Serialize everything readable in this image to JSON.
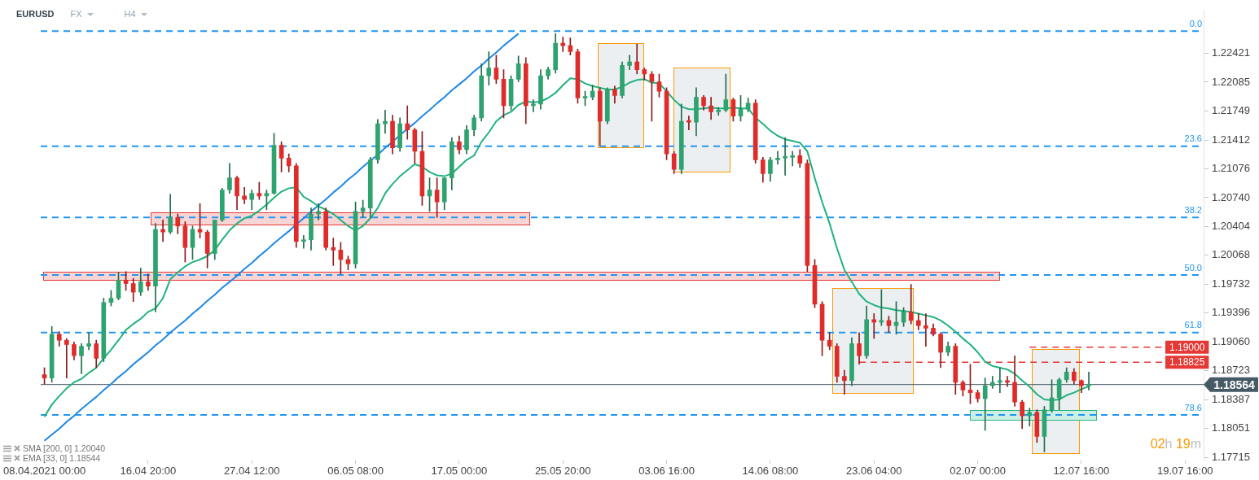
{
  "chart_data": {
    "type": "candlestick",
    "title": "EURUSD",
    "subtitle": "FX",
    "annotations": [
      "H4",
      "SMA [200, 0] 1.20040",
      "EMA [33, 0] 1.18544",
      "02h 19m",
      {
        "text": "0.0",
        "y": 1.2268
      },
      {
        "text": "23.6",
        "y": 1.2134
      },
      {
        "text": "38.2",
        "y": 1.2051
      },
      {
        "text": "50.0",
        "y": 1.1984
      },
      {
        "text": "61.8",
        "y": 1.1917
      },
      {
        "text": "78.6",
        "y": 1.1821
      }
    ],
    "categories": [
      "08.04.2021 00:00",
      null,
      null,
      null,
      null,
      null,
      null,
      null,
      null,
      null,
      null,
      null,
      null,
      null,
      "16.04 20:00",
      null,
      null,
      null,
      null,
      null,
      null,
      null,
      null,
      null,
      null,
      null,
      null,
      null,
      "27.04 12:00",
      null,
      null,
      null,
      null,
      null,
      null,
      null,
      null,
      null,
      null,
      null,
      null,
      null,
      "06.05 08:00",
      null,
      null,
      null,
      null,
      null,
      null,
      null,
      null,
      null,
      null,
      null,
      null,
      null,
      "17.05 00:00",
      null,
      null,
      null,
      null,
      null,
      null,
      null,
      null,
      null,
      null,
      null,
      null,
      null,
      "25.05 20:00",
      null,
      null,
      null,
      null,
      null,
      null,
      null,
      null,
      null,
      null,
      null,
      null,
      null,
      "03.06 16:00",
      null,
      null,
      null,
      null,
      null,
      null,
      null,
      null,
      null,
      null,
      null,
      null,
      null,
      "14.06 08:00",
      null,
      null,
      null,
      null,
      null,
      null,
      null,
      null,
      null,
      null,
      null,
      null,
      null,
      "23.06 04:00",
      null,
      null,
      null,
      null,
      null,
      null,
      null,
      null,
      null,
      null,
      null,
      null,
      null,
      "02.07 00:00",
      null,
      null,
      null,
      null,
      null,
      null,
      null,
      null,
      null,
      null,
      null,
      null,
      null,
      "12.07 16:00",
      null,
      null,
      null,
      null,
      null,
      null,
      null,
      null,
      null,
      null,
      null,
      null,
      null,
      "19.07 16:00",
      null,
      null
    ],
    "ohlc": [
      [
        1.1868,
        1.1876,
        1.1857,
        1.1864
      ],
      [
        1.1864,
        1.1924,
        1.1859,
        1.1915
      ],
      [
        1.1915,
        1.1918,
        1.1901,
        1.1908
      ],
      [
        1.1908,
        1.191,
        1.1864,
        1.1903
      ],
      [
        1.1903,
        1.1906,
        1.1885,
        1.189
      ],
      [
        1.189,
        1.1904,
        1.1869,
        1.1901
      ],
      [
        1.1901,
        1.1917,
        1.1897,
        1.1904
      ],
      [
        1.1904,
        1.1908,
        1.1876,
        1.1887
      ],
      [
        1.1887,
        1.1957,
        1.1883,
        1.1952
      ],
      [
        1.1952,
        1.1966,
        1.1948,
        1.1957
      ],
      [
        1.1957,
        1.1987,
        1.1955,
        1.1978
      ],
      [
        1.1978,
        1.1988,
        1.1966,
        1.1974
      ],
      [
        1.1974,
        1.198,
        1.1953,
        1.1964
      ],
      [
        1.1964,
        1.1992,
        1.196,
        1.1976
      ],
      [
        1.1976,
        1.1985,
        1.1966,
        1.1971
      ],
      [
        1.1971,
        1.2044,
        1.1941,
        1.2037
      ],
      [
        1.2037,
        1.2048,
        1.2023,
        1.2034
      ],
      [
        1.2034,
        1.2078,
        1.2032,
        1.2051
      ],
      [
        1.2051,
        1.2055,
        1.2032,
        1.2041
      ],
      [
        1.2041,
        1.2046,
        1.1999,
        1.2016
      ],
      [
        1.2016,
        1.2041,
        1.2002,
        1.2037
      ],
      [
        1.2037,
        1.2067,
        1.2027,
        1.2034
      ],
      [
        1.2034,
        1.2036,
        1.1992,
        1.2009
      ],
      [
        1.2009,
        1.2048,
        1.2002,
        1.2048
      ],
      [
        1.2048,
        1.2085,
        1.2046,
        1.2083
      ],
      [
        1.2083,
        1.2114,
        1.2079,
        1.2097
      ],
      [
        1.2097,
        1.2099,
        1.206,
        1.2076
      ],
      [
        1.2076,
        1.2086,
        1.2067,
        1.2072
      ],
      [
        1.2072,
        1.2083,
        1.206,
        1.2079
      ],
      [
        1.2079,
        1.2092,
        1.2072,
        1.2076
      ],
      [
        1.2076,
        1.2083,
        1.206,
        1.2079
      ],
      [
        1.2079,
        1.2149,
        1.2078,
        1.2135
      ],
      [
        1.2135,
        1.2139,
        1.2104,
        1.212
      ],
      [
        1.212,
        1.2125,
        1.2104,
        1.2111
      ],
      [
        1.2111,
        1.2114,
        1.2016,
        1.2023
      ],
      [
        1.2023,
        1.203,
        1.2015,
        1.2025
      ],
      [
        1.2025,
        1.2062,
        1.2013,
        1.2055
      ],
      [
        1.2055,
        1.2067,
        1.2048,
        1.2058
      ],
      [
        1.2058,
        1.2062,
        1.2013,
        1.2016
      ],
      [
        1.2016,
        1.2027,
        1.1995,
        1.2013
      ],
      [
        1.2013,
        1.2022,
        1.1985,
        1.2002
      ],
      [
        1.2002,
        1.2006,
        1.199,
        1.1997
      ],
      [
        1.1997,
        1.2069,
        1.1992,
        1.2058
      ],
      [
        1.2058,
        1.2071,
        1.2051,
        1.2062
      ],
      [
        1.2062,
        1.2121,
        1.2051,
        1.2118
      ],
      [
        1.2118,
        1.2165,
        1.2114,
        1.216
      ],
      [
        1.216,
        1.2176,
        1.2149,
        1.2163
      ],
      [
        1.2163,
        1.217,
        1.2125,
        1.2132
      ],
      [
        1.2132,
        1.2167,
        1.2128,
        1.216
      ],
      [
        1.216,
        1.2181,
        1.2142,
        1.2153
      ],
      [
        1.2153,
        1.2155,
        1.2114,
        1.2128
      ],
      [
        1.2128,
        1.2151,
        1.2065,
        1.2076
      ],
      [
        1.2076,
        1.2097,
        1.2058,
        1.2083
      ],
      [
        1.2083,
        1.2097,
        1.2051,
        1.2069
      ],
      [
        1.2069,
        1.2097,
        1.206,
        1.2097
      ],
      [
        1.2097,
        1.2144,
        1.2083,
        1.2139
      ],
      [
        1.2139,
        1.2146,
        1.2125,
        1.213
      ],
      [
        1.213,
        1.2158,
        1.2125,
        1.2153
      ],
      [
        1.2153,
        1.217,
        1.2146,
        1.2167
      ],
      [
        1.2167,
        1.223,
        1.2163,
        1.2216
      ],
      [
        1.2216,
        1.2244,
        1.2205,
        1.2225
      ],
      [
        1.2225,
        1.224,
        1.2207,
        1.2212
      ],
      [
        1.2212,
        1.2223,
        1.2167,
        1.2181
      ],
      [
        1.2181,
        1.2216,
        1.2176,
        1.2212
      ],
      [
        1.2212,
        1.2239,
        1.2209,
        1.223
      ],
      [
        1.223,
        1.2237,
        1.216,
        1.2181
      ],
      [
        1.2181,
        1.2188,
        1.2174,
        1.2183
      ],
      [
        1.2183,
        1.2223,
        1.2177,
        1.2216
      ],
      [
        1.2216,
        1.2226,
        1.2212,
        1.2223
      ],
      [
        1.2223,
        1.2265,
        1.2219,
        1.2254
      ],
      [
        1.2254,
        1.2261,
        1.2244,
        1.2251
      ],
      [
        1.2251,
        1.226,
        1.224,
        1.2244
      ],
      [
        1.2244,
        1.2247,
        1.2184,
        1.219
      ],
      [
        1.219,
        1.2198,
        1.2181,
        1.2191
      ],
      [
        1.2191,
        1.2205,
        1.2188,
        1.2198
      ],
      [
        1.2198,
        1.2202,
        1.2135,
        1.2163
      ],
      [
        1.2163,
        1.2202,
        1.216,
        1.22
      ],
      [
        1.22,
        1.2204,
        1.2184,
        1.2193
      ],
      [
        1.2193,
        1.2232,
        1.219,
        1.2228
      ],
      [
        1.2228,
        1.224,
        1.2223,
        1.2232
      ],
      [
        1.2232,
        1.2253,
        1.2218,
        1.2223
      ],
      [
        1.2223,
        1.2225,
        1.2211,
        1.2218
      ],
      [
        1.2218,
        1.2221,
        1.2163,
        1.2209
      ],
      [
        1.2209,
        1.2218,
        1.2191,
        1.2198
      ],
      [
        1.2198,
        1.2202,
        1.2118,
        1.2125
      ],
      [
        1.2125,
        1.2128,
        1.2102,
        1.2107
      ],
      [
        1.2107,
        1.2183,
        1.2102,
        1.2163
      ],
      [
        1.2163,
        1.2169,
        1.2153,
        1.2162
      ],
      [
        1.2162,
        1.2202,
        1.2146,
        1.2191
      ],
      [
        1.2191,
        1.2193,
        1.2176,
        1.2181
      ],
      [
        1.2181,
        1.2191,
        1.2165,
        1.2174
      ],
      [
        1.2174,
        1.2179,
        1.217,
        1.2176
      ],
      [
        1.2176,
        1.2218,
        1.2174,
        1.2188
      ],
      [
        1.2188,
        1.219,
        1.2163,
        1.2169
      ],
      [
        1.2169,
        1.2193,
        1.2163,
        1.2177
      ],
      [
        1.2177,
        1.219,
        1.2174,
        1.2184
      ],
      [
        1.2184,
        1.2188,
        1.2114,
        1.2118
      ],
      [
        1.2118,
        1.2121,
        1.2092,
        1.2102
      ],
      [
        1.2102,
        1.2121,
        1.2093,
        1.2118
      ],
      [
        1.2118,
        1.2128,
        1.2113,
        1.212
      ],
      [
        1.212,
        1.2144,
        1.21,
        1.2121
      ],
      [
        1.2121,
        1.2128,
        1.2111,
        1.2123
      ],
      [
        1.2123,
        1.213,
        1.2109,
        1.2114
      ],
      [
        1.2114,
        1.2118,
        1.1988,
        1.1995
      ],
      [
        1.1995,
        1.2002,
        1.1946,
        1.195
      ],
      [
        1.195,
        1.1953,
        1.189,
        1.1908
      ],
      [
        1.1908,
        1.1917,
        1.1897,
        1.1901
      ],
      [
        1.1901,
        1.1904,
        1.1859,
        1.1866
      ],
      [
        1.1866,
        1.1873,
        1.1845,
        1.1861
      ],
      [
        1.1861,
        1.1911,
        1.1855,
        1.1904
      ],
      [
        1.1904,
        1.1917,
        1.188,
        1.189
      ],
      [
        1.189,
        1.1948,
        1.1887,
        1.1932
      ],
      [
        1.1932,
        1.1939,
        1.191,
        1.1929
      ],
      [
        1.1929,
        1.1967,
        1.1925,
        1.1931
      ],
      [
        1.1931,
        1.1936,
        1.1917,
        1.1925
      ],
      [
        1.1925,
        1.1953,
        1.1915,
        1.1929
      ],
      [
        1.1929,
        1.1946,
        1.1924,
        1.1941
      ],
      [
        1.1941,
        1.1973,
        1.1927,
        1.1931
      ],
      [
        1.1931,
        1.1939,
        1.192,
        1.1925
      ],
      [
        1.1925,
        1.1939,
        1.1901,
        1.1922
      ],
      [
        1.1922,
        1.1927,
        1.1913,
        1.1915
      ],
      [
        1.1915,
        1.1917,
        1.1876,
        1.1894
      ],
      [
        1.1894,
        1.1906,
        1.189,
        1.1901
      ],
      [
        1.1901,
        1.1904,
        1.1845,
        1.1859
      ],
      [
        1.1859,
        1.1861,
        1.1843,
        1.185
      ],
      [
        1.185,
        1.188,
        1.1834,
        1.1847
      ],
      [
        1.1847,
        1.185,
        1.1836,
        1.184
      ],
      [
        1.184,
        1.1864,
        1.1803,
        1.1855
      ],
      [
        1.1855,
        1.1866,
        1.1852,
        1.1859
      ],
      [
        1.1859,
        1.1876,
        1.1847,
        1.1861
      ],
      [
        1.1861,
        1.1866,
        1.1854,
        1.1859
      ],
      [
        1.1859,
        1.189,
        1.1831,
        1.1836
      ],
      [
        1.1836,
        1.1838,
        1.1805,
        1.182
      ],
      [
        1.182,
        1.1829,
        1.1808,
        1.1824
      ],
      [
        1.1824,
        1.1827,
        1.1789,
        1.1796
      ],
      [
        1.1796,
        1.1831,
        1.1778,
        1.1827
      ],
      [
        1.1827,
        1.1862,
        1.1824,
        1.1841
      ],
      [
        1.1841,
        1.1864,
        1.1827,
        1.1862
      ],
      [
        1.1862,
        1.1876,
        1.1859,
        1.1871
      ],
      [
        1.1871,
        1.1875,
        1.1857,
        1.1861
      ],
      [
        1.1861,
        1.1862,
        1.1847,
        1.1855
      ],
      [
        1.1855,
        1.1871,
        1.185,
        1.18564
      ],
      null,
      null,
      null,
      null,
      null,
      null,
      null,
      null,
      null,
      null,
      null,
      null,
      null,
      null,
      null
    ],
    "series": [
      {
        "type": "line",
        "color": "#20b27c",
        "values": [
          1.1819,
          1.1833,
          1.1843,
          1.1852,
          1.1859,
          1.1863,
          1.187,
          1.1876,
          1.1887,
          1.1897,
          1.1908,
          1.192,
          1.1927,
          1.1933,
          1.1941,
          1.1945,
          1.1957,
          1.1979,
          1.1987,
          1.1994,
          1.1999,
          1.2002,
          1.2006,
          1.2013,
          1.2025,
          1.2036,
          1.2044,
          1.205,
          1.2053,
          1.2059,
          1.2066,
          1.2074,
          1.2081,
          1.2085,
          1.2086,
          1.2075,
          1.207,
          1.2064,
          1.206,
          1.2055,
          1.2048,
          1.2041,
          1.2036,
          1.2041,
          1.205,
          1.2062,
          1.2079,
          1.209,
          1.2099,
          1.2106,
          1.2113,
          1.211,
          1.2104,
          1.21,
          1.2099,
          1.2102,
          1.211,
          1.2118,
          1.2123,
          1.2139,
          1.215,
          1.2163,
          1.217,
          1.2174,
          1.2182,
          1.2186,
          1.2185,
          1.2186,
          1.219,
          1.2196,
          1.2205,
          1.2213,
          1.2212,
          1.2207,
          1.2204,
          1.2202,
          1.22,
          1.22,
          1.2203,
          1.2208,
          1.2211,
          1.2212,
          1.2208,
          1.2207,
          1.2198,
          1.2188,
          1.218,
          1.2177,
          1.2177,
          1.2178,
          1.2179,
          1.2178,
          1.2178,
          1.2179,
          1.2178,
          1.2178,
          1.2167,
          1.216,
          1.2152,
          1.2146,
          1.2142,
          1.214,
          1.2138,
          1.2128,
          1.2097,
          1.2069,
          1.2044,
          1.2015,
          1.199,
          1.1976,
          1.1962,
          1.1953,
          1.1949,
          1.1946,
          1.1945,
          1.1943,
          1.1942,
          1.1941,
          1.1939,
          1.1937,
          1.1935,
          1.1931,
          1.1925,
          1.1918,
          1.191,
          1.1903,
          1.1894,
          1.1883,
          1.1878,
          1.1876,
          1.1874,
          1.1869,
          1.1861,
          1.1854,
          1.1845,
          1.1839,
          1.1838,
          1.1839,
          1.1844,
          1.1847,
          1.1851,
          1.18544,
          null,
          null,
          null,
          null,
          null,
          null,
          null,
          null,
          null,
          null,
          null,
          null,
          null,
          null,
          null
        ]
      },
      {
        "type": "line",
        "color": "#1e88e5",
        "values": [
          1.1791,
          1.1798,
          1.1805,
          1.1813,
          1.182,
          1.1828,
          1.1835,
          1.1842,
          1.185,
          1.1857,
          1.1865,
          1.1872,
          1.188,
          1.1887,
          1.1894,
          1.1902,
          1.1909,
          1.1917,
          1.1924,
          1.1931,
          1.1939,
          1.1946,
          1.1954,
          1.1961,
          1.1969,
          1.1976,
          1.1983,
          1.1991,
          1.1998,
          1.2006,
          1.2013,
          1.2021,
          1.2028,
          1.2035,
          1.2043,
          1.205,
          1.2058,
          1.2065,
          1.2072,
          1.208,
          1.2087,
          1.2095,
          1.2102,
          1.211,
          1.2117,
          1.2124,
          1.2132,
          1.2139,
          1.2147,
          1.2154,
          1.2161,
          1.2169,
          1.2176,
          1.2184,
          1.2191,
          1.2199,
          1.2206,
          1.2213,
          1.2221,
          1.2228,
          1.2236,
          1.2243,
          1.2251,
          1.2258,
          1.2265,
          null,
          null,
          null,
          null,
          null,
          null,
          null,
          null,
          null,
          null,
          null,
          null,
          null,
          null,
          null,
          null,
          null,
          null,
          null,
          null,
          null,
          null,
          null,
          null,
          null,
          null,
          null,
          null,
          null,
          null,
          null,
          null,
          null,
          null,
          null,
          null,
          null,
          null,
          null,
          null,
          null,
          null,
          null,
          null,
          null,
          null,
          null,
          null,
          null,
          null,
          null,
          null,
          null,
          null,
          null,
          null,
          null,
          null,
          null,
          null,
          null,
          null,
          null,
          null,
          null,
          null,
          null,
          null,
          null,
          null,
          null,
          null,
          null,
          null,
          null,
          null,
          null,
          null,
          null,
          null,
          null,
          null,
          null,
          null,
          null,
          null,
          null,
          null,
          null,
          null,
          null,
          null
        ]
      },
      {
        "type": "line",
        "color": "#e53935",
        "line_style": "dashed",
        "values": [
          null,
          null,
          null,
          null,
          null,
          null,
          null,
          null,
          null,
          null,
          null,
          null,
          null,
          null,
          null,
          null,
          null,
          null,
          null,
          null,
          null,
          null,
          null,
          null,
          null,
          null,
          null,
          null,
          null,
          null,
          null,
          null,
          null,
          null,
          null,
          null,
          null,
          null,
          null,
          null,
          null,
          null,
          null,
          null,
          null,
          null,
          null,
          null,
          null,
          null,
          null,
          null,
          null,
          null,
          null,
          null,
          null,
          null,
          null,
          null,
          null,
          null,
          null,
          null,
          null,
          null,
          null,
          null,
          null,
          null,
          null,
          null,
          null,
          null,
          null,
          null,
          null,
          null,
          null,
          null,
          null,
          null,
          null,
          null,
          null,
          null,
          null,
          null,
          null,
          null,
          null,
          null,
          null,
          null,
          null,
          null,
          null,
          null,
          null,
          null,
          null,
          null,
          null,
          null,
          null,
          null,
          null,
          null,
          null,
          null,
          1.18825,
          1.18825,
          1.18825,
          1.18825,
          1.18825,
          1.18825,
          1.18825,
          1.18825,
          1.18825,
          1.18825,
          1.18825,
          1.18825,
          1.18825,
          1.18825,
          1.18825,
          1.18825,
          1.18825,
          1.18825,
          1.18825,
          1.18825,
          1.18825,
          1.18825,
          1.18825,
          1.18825,
          1.18825,
          1.18825,
          1.18825,
          1.18825,
          1.18825,
          1.18825,
          1.18825,
          1.18825,
          1.18825,
          1.18825,
          1.18825,
          1.18825,
          1.18825,
          1.18825,
          1.18825,
          1.18825,
          1.18825,
          1.18825,
          null,
          null,
          null,
          null,
          null
        ],
        "value_labels": [
          null,
          null,
          null,
          null,
          null,
          null,
          null,
          null,
          null,
          null,
          null,
          null,
          null,
          null,
          null,
          null,
          null,
          null,
          null,
          null,
          null,
          null,
          null,
          null,
          null,
          null,
          null,
          null,
          null,
          null,
          null,
          null,
          null,
          null,
          null,
          null,
          null,
          null,
          null,
          null,
          null,
          null,
          null,
          null,
          null,
          null,
          null,
          null,
          null,
          null,
          null,
          null,
          null,
          null,
          null,
          null,
          null,
          null,
          null,
          null,
          null,
          null,
          null,
          null,
          null,
          null,
          null,
          null,
          null,
          null,
          null,
          null,
          null,
          null,
          null,
          null,
          null,
          null,
          null,
          null,
          null,
          null,
          null,
          null,
          null,
          null,
          null,
          null,
          null,
          null,
          null,
          null,
          null,
          null,
          null,
          null,
          null,
          null,
          null,
          null,
          null,
          null,
          null,
          null,
          null,
          null,
          null,
          null,
          null,
          null,
          null,
          null,
          null,
          null,
          null,
          null,
          null,
          null,
          null,
          null,
          null,
          null,
          null,
          null,
          null,
          null,
          null,
          null,
          null,
          null,
          null,
          null,
          null,
          null,
          null,
          null,
          null,
          null,
          null,
          null,
          null,
          null,
          null,
          null,
          null,
          null,
          null,
          null,
          null,
          null,
          null,
          "1.18825",
          null,
          null,
          null,
          null,
          null
        ]
      },
      {
        "type": "line",
        "color": "#e53935",
        "line_style": "dashed",
        "values": [
          null,
          null,
          null,
          null,
          null,
          null,
          null,
          null,
          null,
          null,
          null,
          null,
          null,
          null,
          null,
          null,
          null,
          null,
          null,
          null,
          null,
          null,
          null,
          null,
          null,
          null,
          null,
          null,
          null,
          null,
          null,
          null,
          null,
          null,
          null,
          null,
          null,
          null,
          null,
          null,
          null,
          null,
          null,
          null,
          null,
          null,
          null,
          null,
          null,
          null,
          null,
          null,
          null,
          null,
          null,
          null,
          null,
          null,
          null,
          null,
          null,
          null,
          null,
          null,
          null,
          null,
          null,
          null,
          null,
          null,
          null,
          null,
          null,
          null,
          null,
          null,
          null,
          null,
          null,
          null,
          null,
          null,
          null,
          null,
          null,
          null,
          null,
          null,
          null,
          null,
          null,
          null,
          null,
          null,
          null,
          null,
          null,
          null,
          null,
          null,
          null,
          null,
          null,
          null,
          null,
          null,
          null,
          null,
          null,
          null,
          null,
          null,
          null,
          null,
          null,
          null,
          null,
          null,
          null,
          null,
          null,
          null,
          null,
          null,
          null,
          null,
          null,
          null,
          null,
          null,
          null,
          null,
          null,
          1.19,
          1.19,
          1.19,
          1.19,
          1.19,
          1.19,
          1.19,
          1.19,
          1.19,
          1.19,
          1.19,
          1.19,
          1.19,
          1.19,
          1.19,
          1.19,
          1.19,
          1.19,
          1.19,
          null,
          null,
          null,
          null,
          null
        ],
        "value_labels": [
          null,
          null,
          null,
          null,
          null,
          null,
          null,
          null,
          null,
          null,
          null,
          null,
          null,
          null,
          null,
          null,
          null,
          null,
          null,
          null,
          null,
          null,
          null,
          null,
          null,
          null,
          null,
          null,
          null,
          null,
          null,
          null,
          null,
          null,
          null,
          null,
          null,
          null,
          null,
          null,
          null,
          null,
          null,
          null,
          null,
          null,
          null,
          null,
          null,
          null,
          null,
          null,
          null,
          null,
          null,
          null,
          null,
          null,
          null,
          null,
          null,
          null,
          null,
          null,
          null,
          null,
          null,
          null,
          null,
          null,
          null,
          null,
          null,
          null,
          null,
          null,
          null,
          null,
          null,
          null,
          null,
          null,
          null,
          null,
          null,
          null,
          null,
          null,
          null,
          null,
          null,
          null,
          null,
          null,
          null,
          null,
          null,
          null,
          null,
          null,
          null,
          null,
          null,
          null,
          null,
          null,
          null,
          null,
          null,
          null,
          null,
          null,
          null,
          null,
          null,
          null,
          null,
          null,
          null,
          null,
          null,
          null,
          null,
          null,
          null,
          null,
          null,
          null,
          null,
          null,
          null,
          null,
          null,
          null,
          null,
          null,
          null,
          null,
          null,
          null,
          null,
          null,
          null,
          null,
          null,
          null,
          null,
          null,
          null,
          null,
          null,
          "1.19000",
          null,
          null,
          null,
          null,
          null
        ]
      }
    ],
    "ylim": [
      1.1768,
      1.2293
    ],
    "yticks": [
      1.17715,
      1.18051,
      1.18387,
      1.18723,
      {
        "value": 1.1906,
        "label": "1.19060"
      },
      1.19396,
      1.19732,
      1.20068,
      1.20404,
      {
        "value": 1.2074,
        "label": "1.20740"
      },
      1.21076,
      1.21412,
      1.21749,
      1.22085,
      1.22421
    ],
    "ref_lines": [
      {
        "axis": "y",
        "value": 1.2268,
        "color": "#2196f3",
        "line_style": "dashed"
      },
      {
        "axis": "y",
        "value": 1.2134,
        "color": "#2196f3",
        "line_style": "dashed"
      },
      {
        "axis": "y",
        "value": 1.2051,
        "color": "#2196f3",
        "line_style": "dashed"
      },
      {
        "axis": "y",
        "value": 1.1984,
        "color": "#2196f3",
        "line_style": "dashed"
      },
      {
        "axis": "y",
        "value": 1.1917,
        "color": "#2196f3",
        "line_style": "dashed"
      },
      {
        "axis": "y",
        "value": 1.1821,
        "color": "#2196f3",
        "line_style": "dashed"
      },
      {
        "axis": "y",
        "value": 1.18564,
        "label": "1.18564",
        "color": "#455a64",
        "line_style": "solid"
      }
    ]
  }
}
